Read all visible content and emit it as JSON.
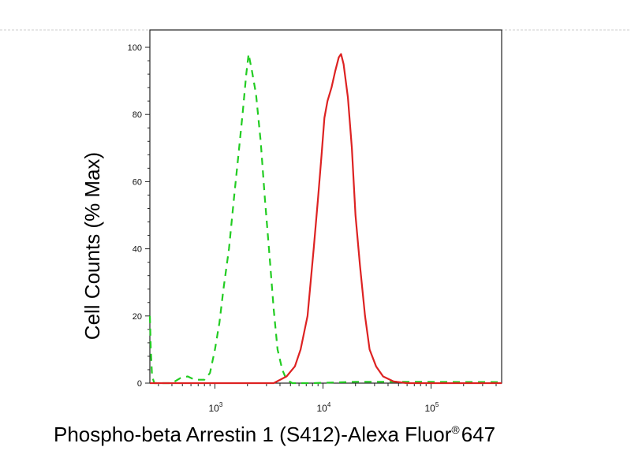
{
  "chart_data": {
    "type": "line",
    "title": "",
    "xlabel": "Phospho-beta Arrestin 1 (S412)-Alexa Fluor",
    "xlabel_superscript": "®",
    "xlabel_suffix": "647",
    "ylabel": "Cell Counts (% Max)",
    "x_scale": "log",
    "xlim": [
      250,
      450000
    ],
    "ylim": [
      0,
      100
    ],
    "y_ticks": [
      0,
      20,
      40,
      60,
      80,
      100
    ],
    "x_ticks": [
      {
        "base": "10",
        "exp": "3",
        "value": 1000
      },
      {
        "base": "10",
        "exp": "4",
        "value": 10000
      },
      {
        "base": "10",
        "exp": "5",
        "value": 100000
      }
    ],
    "legend": "none",
    "grid": false,
    "series": [
      {
        "color": "#22cc22",
        "style": "dashed",
        "points": [
          [
            250,
            20
          ],
          [
            255,
            10
          ],
          [
            262,
            2
          ],
          [
            275,
            0
          ],
          [
            400,
            0
          ],
          [
            480,
            1.5
          ],
          [
            560,
            2
          ],
          [
            650,
            1
          ],
          [
            800,
            1
          ],
          [
            900,
            3
          ],
          [
            1000,
            10
          ],
          [
            1100,
            18
          ],
          [
            1200,
            28
          ],
          [
            1350,
            40
          ],
          [
            1500,
            55
          ],
          [
            1650,
            68
          ],
          [
            1800,
            80
          ],
          [
            1950,
            92
          ],
          [
            2050,
            98
          ],
          [
            2200,
            93
          ],
          [
            2400,
            86
          ],
          [
            2650,
            72
          ],
          [
            2900,
            55
          ],
          [
            3200,
            38
          ],
          [
            3500,
            22
          ],
          [
            3800,
            10
          ],
          [
            4200,
            4
          ],
          [
            4600,
            1
          ],
          [
            5200,
            0
          ],
          [
            8000,
            0
          ],
          [
            20000,
            0.4
          ],
          [
            50000,
            0.4
          ],
          [
            450000,
            0.3
          ]
        ]
      },
      {
        "color": "#dd2222",
        "style": "solid",
        "points": [
          [
            250,
            0
          ],
          [
            3500,
            0
          ],
          [
            4600,
            2
          ],
          [
            5500,
            5
          ],
          [
            6200,
            10
          ],
          [
            7200,
            20
          ],
          [
            8200,
            40
          ],
          [
            9000,
            55
          ],
          [
            9700,
            68
          ],
          [
            10300,
            79
          ],
          [
            11000,
            84
          ],
          [
            12000,
            88
          ],
          [
            13000,
            93
          ],
          [
            14000,
            97
          ],
          [
            14700,
            98
          ],
          [
            15500,
            95
          ],
          [
            17000,
            85
          ],
          [
            18500,
            70
          ],
          [
            20000,
            50
          ],
          [
            22000,
            35
          ],
          [
            24500,
            20
          ],
          [
            27000,
            10
          ],
          [
            31000,
            5
          ],
          [
            36000,
            2
          ],
          [
            45000,
            0.5
          ],
          [
            60000,
            0
          ],
          [
            450000,
            0
          ]
        ]
      }
    ]
  }
}
